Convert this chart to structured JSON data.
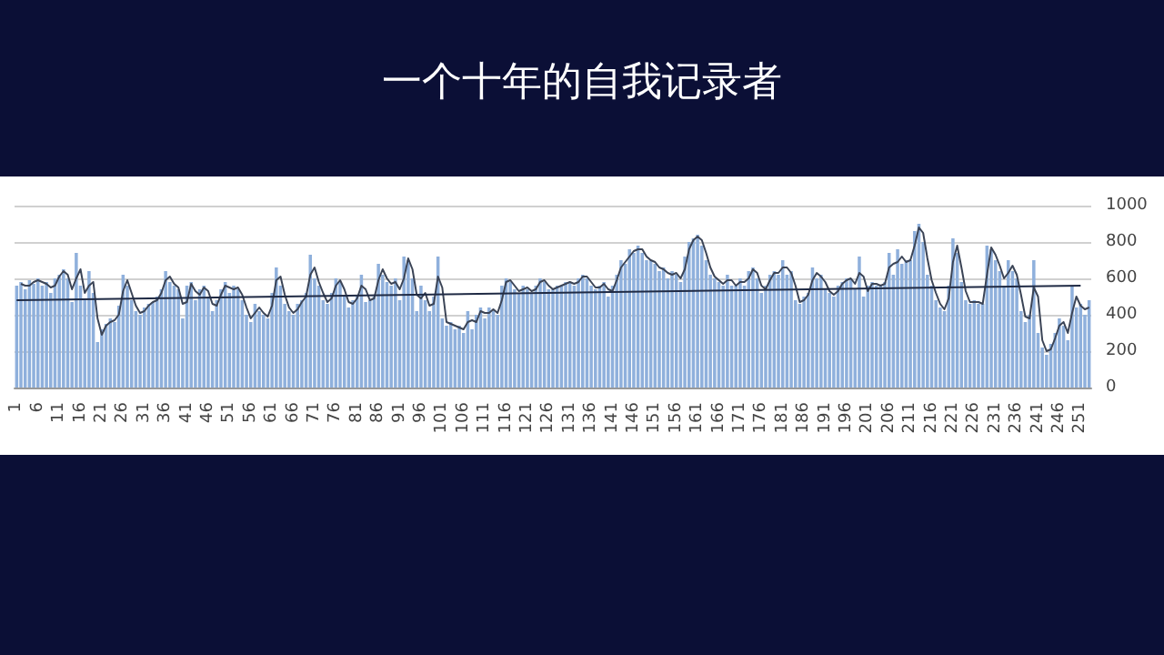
{
  "chart_data": {
    "type": "bar",
    "title": "一个十年的自我记录者",
    "categories": [
      "1",
      null,
      null,
      null,
      null,
      "6",
      null,
      null,
      null,
      null,
      "11",
      null,
      null,
      null,
      null,
      "16",
      null,
      null,
      null,
      null,
      "21",
      null,
      null,
      null,
      null,
      "26",
      null,
      null,
      null,
      null,
      "31",
      null,
      null,
      null,
      null,
      "36",
      null,
      null,
      null,
      null,
      "41",
      null,
      null,
      null,
      null,
      "46",
      null,
      null,
      null,
      null,
      "51",
      null,
      null,
      null,
      null,
      "56",
      null,
      null,
      null,
      null,
      "61",
      null,
      null,
      null,
      null,
      "66",
      null,
      null,
      null,
      null,
      "71",
      null,
      null,
      null,
      null,
      "76",
      null,
      null,
      null,
      null,
      "81",
      null,
      null,
      null,
      null,
      "86",
      null,
      null,
      null,
      null,
      "91",
      null,
      null,
      null,
      null,
      "96",
      null,
      null,
      null,
      null,
      "101",
      null,
      null,
      null,
      null,
      "106",
      null,
      null,
      null,
      null,
      "111",
      null,
      null,
      null,
      null,
      "116",
      null,
      null,
      null,
      null,
      "121",
      null,
      null,
      null,
      null,
      "126",
      null,
      null,
      null,
      null,
      "131",
      null,
      null,
      null,
      null,
      "136",
      null,
      null,
      null,
      null,
      "141",
      null,
      null,
      null,
      null,
      "146",
      null,
      null,
      null,
      null,
      "151",
      null,
      null,
      null,
      null,
      "156",
      null,
      null,
      null,
      null,
      "161",
      null,
      null,
      null,
      null,
      "166",
      null,
      null,
      null,
      null,
      "171",
      null,
      null,
      null,
      null,
      "176",
      null,
      null,
      null,
      null,
      "181",
      null,
      null,
      null,
      null,
      "186",
      null,
      null,
      null,
      null,
      "191",
      null,
      null,
      null,
      null,
      "196",
      null,
      null,
      null,
      null,
      "201",
      null,
      null,
      null,
      null,
      "206",
      null,
      null,
      null,
      null,
      "211",
      null,
      null,
      null,
      null,
      "216",
      null,
      null,
      null,
      null,
      "221",
      null,
      null,
      null,
      null,
      "226",
      null,
      null,
      null,
      null,
      "231",
      null,
      null,
      null,
      null,
      "236",
      null,
      null,
      null,
      null,
      "241",
      null,
      null,
      null,
      null,
      "246",
      null,
      null,
      null,
      null,
      "251",
      null,
      null
    ],
    "series": [
      {
        "color": "#8fb0dc",
        "values": [
          560,
          580,
          540,
          590,
          570,
          600,
          560,
          580,
          520,
          600,
          620,
          650,
          600,
          470,
          740,
          560,
          480,
          640,
          520,
          250,
          320,
          350,
          380,
          360,
          450,
          620,
          560,
          480,
          420,
          400,
          440,
          460,
          470,
          500,
          540,
          640,
          580,
          560,
          540,
          380,
          560,
          580,
          480,
          540,
          560,
          500,
          420,
          480,
          540,
          580,
          520,
          560,
          540,
          480,
          400,
          360,
          460,
          420,
          400,
          380,
          520,
          660,
          560,
          460,
          420,
          400,
          460,
          480,
          520,
          730,
          600,
          560,
          480,
          460,
          520,
          600,
          580,
          500,
          440,
          480,
          500,
          620,
          470,
          480,
          500,
          680,
          620,
          580,
          560,
          600,
          480,
          720,
          700,
          600,
          420,
          560,
          480,
          420,
          500,
          720,
          380,
          340,
          360,
          320,
          340,
          300,
          420,
          320,
          400,
          440,
          380,
          440,
          420,
          400,
          560,
          600,
          580,
          540,
          520,
          560,
          540,
          520,
          560,
          600,
          580,
          540,
          540,
          560,
          560,
          580,
          580,
          560,
          600,
          620,
          600,
          560,
          540,
          560,
          580,
          500,
          560,
          620,
          700,
          680,
          760,
          740,
          780,
          740,
          700,
          700,
          680,
          640,
          660,
          600,
          640,
          620,
          580,
          720,
          800,
          820,
          840,
          780,
          700,
          620,
          600,
          580,
          560,
          620,
          560,
          560,
          600,
          560,
          640,
          660,
          600,
          520,
          560,
          620,
          640,
          620,
          700,
          620,
          640,
          480,
          460,
          500,
          520,
          660,
          600,
          620,
          540,
          520,
          500,
          560,
          580,
          600,
          600,
          540,
          720,
          500,
          560,
          580,
          560,
          560,
          580,
          740,
          620,
          760,
          680,
          700,
          700,
          860,
          900,
          800,
          620,
          560,
          480,
          440,
          420,
          560,
          820,
          740,
          580,
          480,
          460,
          480,
          460,
          460,
          780,
          760,
          700,
          640,
          560,
          700,
          640,
          600,
          420,
          360,
          400,
          700,
          300,
          220,
          180,
          240,
          300,
          380,
          340,
          260,
          560,
          440,
          460,
          400,
          480
        ]
      },
      {
        "type": "line",
        "color": "#3b4456",
        "values": [
          null,
          570,
          560,
          560,
          580,
          590,
          580,
          570,
          550,
          560,
          610,
          640,
          620,
          540,
          600,
          650,
          520,
          560,
          580,
          380,
          290,
          340,
          360,
          370,
          400,
          530,
          590,
          520,
          450,
          410,
          420,
          450,
          470,
          480,
          520,
          590,
          610,
          570,
          550,
          460,
          470,
          570,
          530,
          510,
          550,
          530,
          460,
          450,
          510,
          560,
          550,
          540,
          550,
          510,
          440,
          380,
          410,
          440,
          410,
          390,
          450,
          590,
          610,
          510,
          440,
          410,
          430,
          470,
          500,
          620,
          660,
          580,
          520,
          470,
          490,
          560,
          590,
          540,
          470,
          460,
          490,
          560,
          540,
          480,
          490,
          590,
          650,
          600,
          570,
          580,
          540,
          600,
          710,
          650,
          510,
          490,
          520,
          450,
          460,
          610,
          550,
          360,
          350,
          340,
          330,
          320,
          360,
          370,
          360,
          420,
          410,
          410,
          430,
          410,
          480,
          580,
          590,
          560,
          530,
          540,
          550,
          530,
          540,
          580,
          590,
          560,
          540,
          550,
          560,
          570,
          580,
          570,
          580,
          610,
          610,
          580,
          550,
          550,
          570,
          540,
          530,
          590,
          660,
          690,
          720,
          750,
          760,
          760,
          720,
          700,
          690,
          660,
          650,
          630,
          620,
          630,
          600,
          650,
          760,
          810,
          830,
          810,
          740,
          660,
          610,
          590,
          570,
          590,
          590,
          560,
          580,
          580,
          600,
          650,
          630,
          560,
          540,
          590,
          630,
          630,
          660,
          660,
          630,
          560,
          470,
          480,
          510,
          590,
          630,
          610,
          580,
          530,
          510,
          530,
          570,
          590,
          600,
          570,
          630,
          610,
          530,
          570,
          570,
          560,
          570,
          660,
          680,
          690,
          720,
          690,
          700,
          780,
          880,
          850,
          710,
          590,
          520,
          460,
          430,
          490,
          690,
          780,
          660,
          530,
          470,
          470,
          470,
          460,
          620,
          770,
          730,
          670,
          600,
          630,
          670,
          620,
          510,
          390,
          380,
          550,
          500,
          260,
          200,
          210,
          270,
          340,
          360,
          300,
          410,
          500,
          450,
          430,
          440
        ]
      },
      {
        "type": "line",
        "color": "#1f2a44",
        "x": [
          "1",
          "251"
        ],
        "values": [
          480,
          560
        ]
      }
    ],
    "ylim": [
      0,
      1000
    ],
    "yticks": [
      0,
      200,
      400,
      600,
      800,
      {
        "value": 1000,
        "label": "1000"
      }
    ],
    "grid": "y",
    "marker": "none",
    "line_style": "solid"
  }
}
